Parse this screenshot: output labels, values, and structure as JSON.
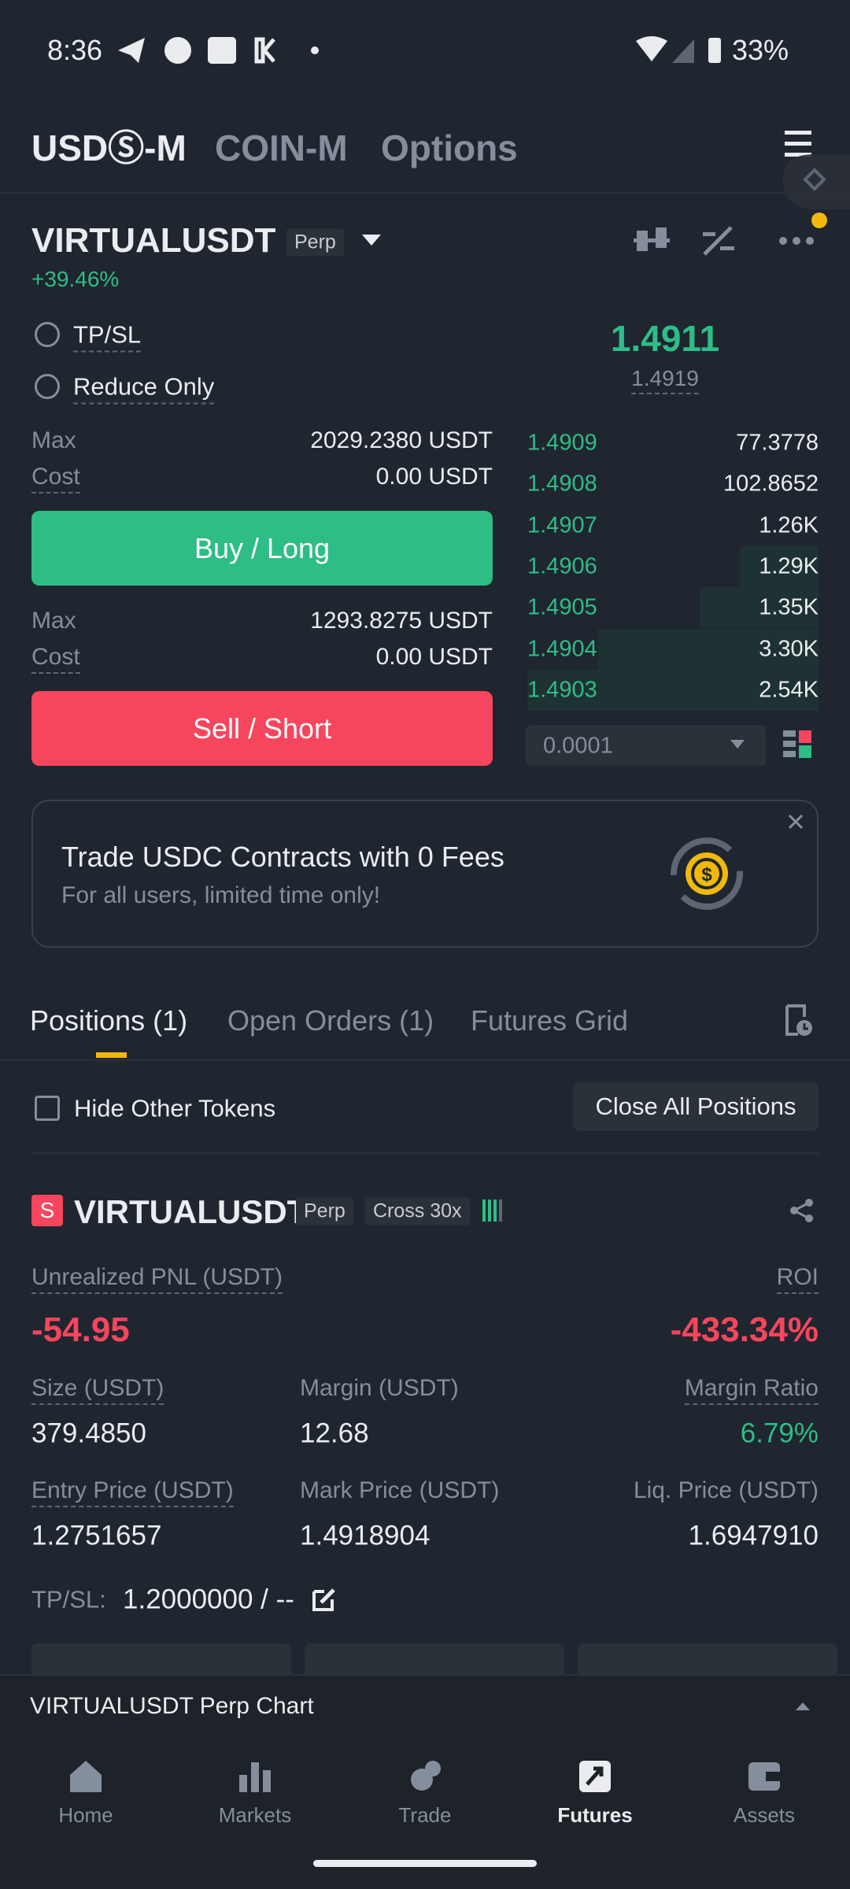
{
  "status_bar": {
    "time": "8:36",
    "battery": "33%"
  },
  "market_tabs": [
    "USDⓈ-M",
    "COIN-M",
    "Options"
  ],
  "symbol": {
    "name": "VIRTUALUSDT",
    "badge": "Perp",
    "change": "+39.46%"
  },
  "order_options": [
    "TP/SL",
    "Reduce Only"
  ],
  "price": {
    "last": "1.4911",
    "mark": "1.4919"
  },
  "buy": {
    "max_label": "Max",
    "max": "2029.2380 USDT",
    "cost_label": "Cost",
    "cost": "0.00 USDT",
    "button": "Buy / Long"
  },
  "sell": {
    "max_label": "Max",
    "max": "1293.8275 USDT",
    "cost_label": "Cost",
    "cost": "0.00 USDT",
    "button": "Sell / Short"
  },
  "order_book": {
    "rows": [
      [
        "1.4909",
        "77.3778"
      ],
      [
        "1.4908",
        "102.8652"
      ],
      [
        "1.4907",
        "1.26K"
      ],
      [
        "1.4906",
        "1.29K"
      ],
      [
        "1.4905",
        "1.35K"
      ],
      [
        "1.4904",
        "3.30K"
      ],
      [
        "1.4903",
        "2.54K"
      ]
    ],
    "tick_size": "0.0001"
  },
  "banner": {
    "title": "Trade USDC Contracts with 0 Fees",
    "subtitle": "For all users, limited time only!"
  },
  "position_tabs": [
    "Positions (1)",
    "Open Orders (1)",
    "Futures Grid"
  ],
  "filters": {
    "hide_other_tokens": "Hide Other Tokens",
    "close_all": "Close All Positions"
  },
  "position": {
    "side": "S",
    "symbol": "VIRTUALUSDT",
    "type": "Perp",
    "margin_mode": "Cross 30x",
    "pnl_label": "Unrealized PNL (USDT)",
    "pnl": "-54.95",
    "roi_label": "ROI",
    "roi": "-433.34%",
    "fields": [
      {
        "label": "Size (USDT)",
        "value": "379.4850"
      },
      {
        "label": "Margin (USDT)",
        "value": "12.68"
      },
      {
        "label": "Margin Ratio",
        "value": "6.79%"
      },
      {
        "label": "Entry Price (USDT)",
        "value": "1.2751657"
      },
      {
        "label": "Mark Price (USDT)",
        "value": "1.4918904"
      },
      {
        "label": "Liq. Price (USDT)",
        "value": "1.6947910"
      }
    ],
    "tpsl_label": "TP/SL:",
    "tpsl": "1.2000000 / --"
  },
  "chart_bar": "VIRTUALUSDT Perp Chart",
  "bottom_nav": [
    "Home",
    "Markets",
    "Trade",
    "Futures",
    "Assets"
  ]
}
